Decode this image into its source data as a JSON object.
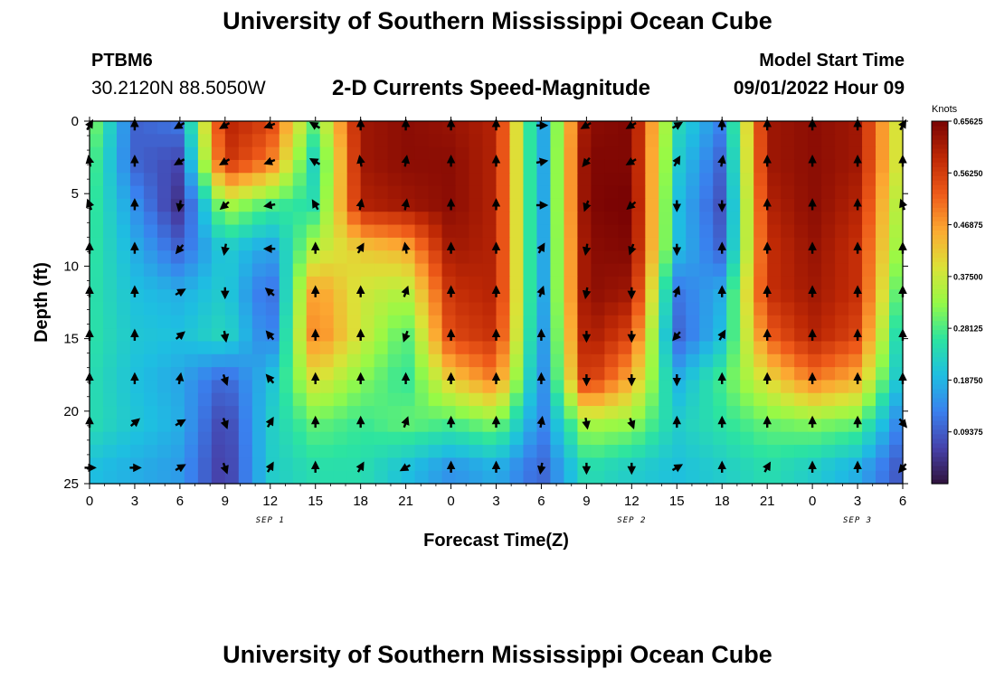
{
  "header": {
    "title": "University of Southern Mississippi Ocean Cube",
    "station_id": "PTBM6",
    "coordinates": "30.2120N  88.5050W",
    "subtitle": "2-D Currents Speed-Magnitude",
    "model_start_label": "Model Start Time",
    "model_start_value": "09/01/2022 Hour 09"
  },
  "footer": {
    "title": "University of Southern Mississippi Ocean Cube"
  },
  "chart_data": {
    "type": "heatmap",
    "title": "2-D Currents Speed-Magnitude",
    "xlabel": "Forecast Time(Z)",
    "ylabel": "Depth (ft)",
    "x_tick_labels": [
      "0",
      "3",
      "6",
      "9",
      "12",
      "15",
      "18",
      "21",
      "0",
      "3",
      "6",
      "9",
      "12",
      "15",
      "18",
      "21",
      "0",
      "3",
      "6"
    ],
    "x_range_hours": [
      0,
      54
    ],
    "y_ticks": [
      0,
      5,
      10,
      15,
      20,
      25
    ],
    "y_range_ft": [
      0,
      25
    ],
    "date_labels": [
      {
        "text": "SEP 1",
        "hour": 12
      },
      {
        "text": "SEP 2",
        "hour": 36
      },
      {
        "text": "SEP 3",
        "hour": 51
      }
    ],
    "colorbar": {
      "unit": "Knots",
      "min": 0.0,
      "max": 0.65625,
      "tick_labels": [
        "0.65625",
        "0.56250",
        "0.46875",
        "0.37500",
        "0.28125",
        "0.18750",
        "0.09375"
      ],
      "tick_values": [
        0.65625,
        0.5625,
        0.46875,
        0.375,
        0.28125,
        0.1875,
        0.09375
      ]
    },
    "depths_ft": [
      0.3,
      2.8,
      5.8,
      8.8,
      11.8,
      14.8,
      17.8,
      20.8,
      23.9
    ],
    "times_h": [
      0,
      3,
      6,
      9,
      12,
      15,
      18,
      21,
      24,
      27,
      30,
      33,
      36,
      39,
      42,
      45,
      48,
      51,
      54
    ],
    "speed_knots": [
      [
        0.33,
        0.1,
        0.12,
        0.6,
        0.55,
        0.28,
        0.62,
        0.64,
        0.63,
        0.6,
        0.15,
        0.64,
        0.65,
        0.24,
        0.13,
        0.62,
        0.64,
        0.62,
        0.35
      ],
      [
        0.3,
        0.1,
        0.07,
        0.58,
        0.5,
        0.22,
        0.62,
        0.64,
        0.64,
        0.6,
        0.15,
        0.65,
        0.65,
        0.22,
        0.1,
        0.62,
        0.64,
        0.62,
        0.35
      ],
      [
        0.28,
        0.15,
        0.04,
        0.35,
        0.28,
        0.25,
        0.6,
        0.62,
        0.64,
        0.6,
        0.15,
        0.65,
        0.66,
        0.2,
        0.08,
        0.6,
        0.64,
        0.6,
        0.32
      ],
      [
        0.27,
        0.18,
        0.1,
        0.22,
        0.16,
        0.36,
        0.42,
        0.45,
        0.62,
        0.6,
        0.15,
        0.64,
        0.65,
        0.2,
        0.1,
        0.58,
        0.63,
        0.58,
        0.3
      ],
      [
        0.26,
        0.2,
        0.18,
        0.22,
        0.1,
        0.48,
        0.38,
        0.35,
        0.58,
        0.6,
        0.15,
        0.64,
        0.62,
        0.12,
        0.18,
        0.58,
        0.62,
        0.58,
        0.25
      ],
      [
        0.26,
        0.21,
        0.2,
        0.24,
        0.12,
        0.5,
        0.38,
        0.28,
        0.55,
        0.58,
        0.14,
        0.62,
        0.55,
        0.1,
        0.2,
        0.52,
        0.6,
        0.55,
        0.2
      ],
      [
        0.25,
        0.2,
        0.17,
        0.1,
        0.2,
        0.4,
        0.32,
        0.26,
        0.42,
        0.5,
        0.13,
        0.58,
        0.45,
        0.18,
        0.28,
        0.4,
        0.5,
        0.45,
        0.18
      ],
      [
        0.25,
        0.21,
        0.18,
        0.06,
        0.22,
        0.3,
        0.27,
        0.3,
        0.28,
        0.32,
        0.13,
        0.35,
        0.33,
        0.22,
        0.26,
        0.3,
        0.32,
        0.3,
        0.12
      ],
      [
        0.2,
        0.18,
        0.16,
        0.05,
        0.22,
        0.25,
        0.25,
        0.2,
        0.15,
        0.18,
        0.1,
        0.25,
        0.22,
        0.2,
        0.22,
        0.25,
        0.22,
        0.18,
        0.08
      ]
    ],
    "direction_deg": [
      [
        30,
        0,
        240,
        240,
        250,
        300,
        0,
        0,
        0,
        0,
        90,
        240,
        240,
        60,
        0,
        0,
        0,
        0,
        30
      ],
      [
        350,
        0,
        240,
        240,
        250,
        300,
        350,
        10,
        0,
        0,
        80,
        220,
        240,
        30,
        10,
        0,
        0,
        0,
        0
      ],
      [
        340,
        0,
        190,
        230,
        260,
        330,
        10,
        10,
        0,
        0,
        90,
        200,
        230,
        180,
        180,
        0,
        0,
        0,
        340
      ],
      [
        0,
        0,
        220,
        190,
        270,
        0,
        30,
        350,
        0,
        0,
        30,
        190,
        200,
        180,
        0,
        0,
        0,
        0,
        0
      ],
      [
        0,
        0,
        60,
        180,
        310,
        0,
        0,
        20,
        0,
        0,
        20,
        190,
        180,
        20,
        0,
        0,
        0,
        0,
        0
      ],
      [
        0,
        0,
        50,
        170,
        320,
        0,
        0,
        200,
        0,
        0,
        0,
        180,
        180,
        220,
        30,
        0,
        0,
        0,
        0
      ],
      [
        0,
        0,
        10,
        160,
        320,
        0,
        0,
        0,
        0,
        0,
        0,
        180,
        180,
        180,
        0,
        0,
        0,
        0,
        0
      ],
      [
        0,
        50,
        60,
        160,
        30,
        0,
        0,
        20,
        0,
        0,
        10,
        170,
        160,
        0,
        0,
        0,
        0,
        0,
        140
      ],
      [
        90,
        90,
        60,
        160,
        30,
        0,
        30,
        240,
        0,
        0,
        190,
        180,
        180,
        60,
        0,
        30,
        0,
        0,
        220
      ]
    ]
  }
}
